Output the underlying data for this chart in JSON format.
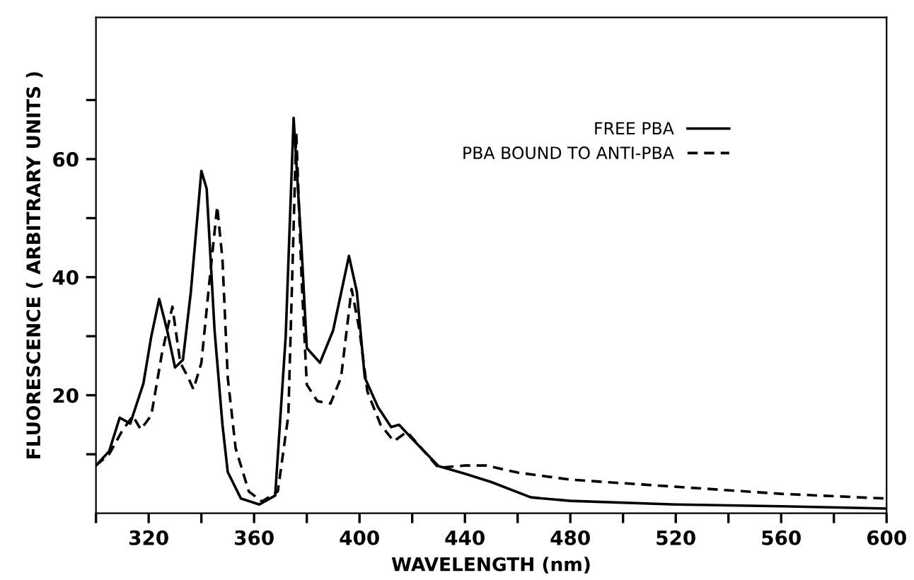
{
  "chart_data": {
    "type": "line",
    "xlabel": "WAVELENGTH (nm)",
    "ylabel": "FLUORESCENCE ( ARBITRARY UNITS )",
    "xlim": [
      300,
      600
    ],
    "ylim": [
      0,
      84
    ],
    "xticks": [
      {
        "value": 300,
        "label": null
      },
      320,
      {
        "value": 340,
        "label": null
      },
      360,
      {
        "value": 380,
        "label": null
      },
      400,
      {
        "value": 420,
        "label": null
      },
      440,
      {
        "value": 460,
        "label": null
      },
      480,
      {
        "value": 500,
        "label": null
      },
      520,
      {
        "value": 540,
        "label": null
      },
      560,
      {
        "value": 580,
        "label": null
      },
      600
    ],
    "yticks": [
      {
        "value": 10,
        "label": null
      },
      20,
      {
        "value": 30,
        "label": null
      },
      40,
      {
        "value": 50,
        "label": null
      },
      60,
      {
        "value": 70,
        "label": null
      }
    ],
    "grid": false,
    "legend": "top right",
    "series": [
      {
        "name": "FREE PBA",
        "color": "#000000",
        "line_style": "solid",
        "x": [
          300,
          305,
          309,
          313,
          318,
          321,
          324,
          327,
          330,
          333,
          336,
          340,
          342,
          345,
          348,
          350,
          355,
          362,
          368,
          372,
          375,
          378,
          380,
          385,
          390,
          396,
          399,
          402,
          407,
          412,
          415,
          420,
          430,
          440,
          450,
          465,
          480,
          520,
          560,
          600
        ],
        "values": [
          8.1,
          10.5,
          16.2,
          15.2,
          22,
          30,
          36.3,
          31,
          24.7,
          26,
          37.5,
          58,
          55,
          31,
          15,
          7,
          2.5,
          1.5,
          3,
          30,
          67,
          45,
          28,
          25.5,
          31,
          43.6,
          37.5,
          23,
          18,
          14.6,
          15,
          12.6,
          8,
          6.7,
          5.3,
          2.7,
          2.1,
          1.5,
          1.2,
          0.8
        ]
      },
      {
        "name": "PBA BOUND TO ANTI-PBA",
        "color": "#000000",
        "line_style": "dashed",
        "x": [
          300,
          305,
          310,
          314,
          317,
          321,
          325,
          329,
          332,
          335,
          337,
          340,
          343,
          346,
          348,
          350,
          353,
          358,
          363,
          369,
          373,
          376,
          378,
          380,
          384,
          389,
          393,
          397,
          400,
          403,
          408,
          413,
          418,
          422,
          430,
          440,
          448,
          460,
          480,
          520,
          560,
          600
        ],
        "values": [
          8.1,
          10,
          14,
          16.5,
          14.2,
          16.6,
          27,
          35,
          25.5,
          23,
          21,
          25.5,
          39,
          52,
          43,
          23,
          11,
          3.7,
          2,
          3.7,
          16.6,
          64.5,
          40,
          21.8,
          19,
          18.6,
          23,
          38,
          31,
          20.6,
          15,
          12.2,
          13.8,
          11.8,
          7.7,
          8.1,
          8.1,
          6.9,
          5.7,
          4.5,
          3.3,
          2.5
        ]
      }
    ]
  }
}
